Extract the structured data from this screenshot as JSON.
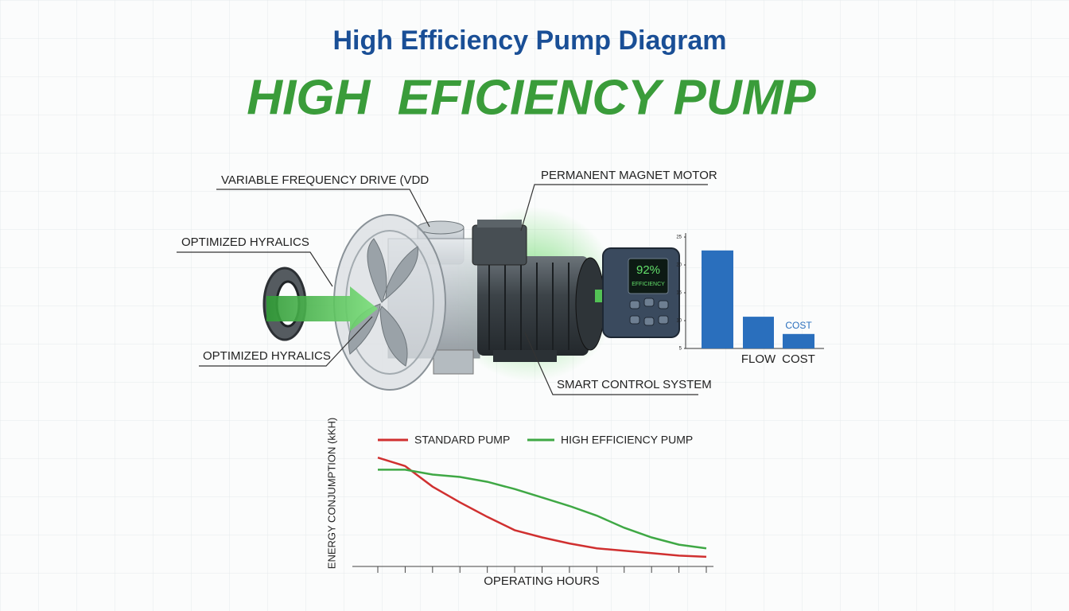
{
  "header": {
    "title": "High Efficiency Pump Diagram",
    "heading": "HIGH  EFICIENCY PUMP"
  },
  "callouts": [
    {
      "label": "VARIABLE FREQUENCY DRIVE (VDD"
    },
    {
      "label": "PERMANENT MAGNET MOTOR"
    },
    {
      "label": "OPTIMIZED HYRALICS"
    },
    {
      "label": "OPTIMIZED HYRALICS"
    },
    {
      "label": "SMART CONTROL SYSTEM"
    }
  ],
  "display": {
    "reading": "92%",
    "caption": "EFFICIENCY"
  },
  "bar_chart": {
    "type": "bar",
    "categories": [
      null,
      "FLOW",
      "COST"
    ],
    "values": [
      22.6,
      10.7,
      7.6
    ],
    "bar_label": "COST",
    "color": "#2a6fbd",
    "ylim": [
      5,
      25
    ],
    "yticks": [
      25,
      20,
      15,
      10,
      5
    ]
  },
  "line_chart": {
    "type": "line",
    "x_label": "OPERATING HOURS",
    "y_label": "ENERGY CONJUMPTION (kKH)",
    "categories": [
      null,
      null,
      null,
      null,
      null,
      null,
      null,
      null,
      null,
      null,
      null,
      null,
      null
    ],
    "ylim": [
      0,
      10
    ],
    "series": [
      {
        "name": "STANDARD PUMP",
        "color": "#d03030",
        "values": [
          9.0,
          8.3,
          6.6,
          5.3,
          4.1,
          3.0,
          2.4,
          1.9,
          1.5,
          1.3,
          1.1,
          0.9,
          0.8
        ]
      },
      {
        "name": "HIGH EFFICIENCY PUMP",
        "color": "#3fa845",
        "values": [
          8.0,
          8.0,
          7.6,
          7.4,
          7.0,
          6.4,
          5.7,
          5.0,
          4.2,
          3.2,
          2.4,
          1.8,
          1.5
        ]
      }
    ]
  }
}
